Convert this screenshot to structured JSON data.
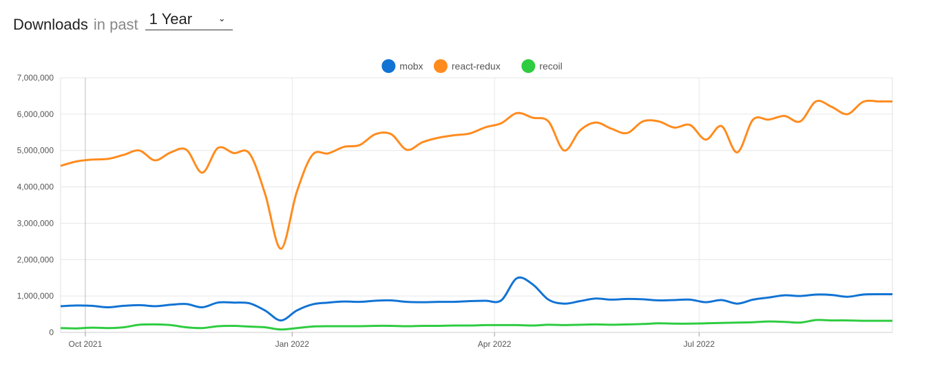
{
  "header": {
    "title": "Downloads",
    "subtitle": "in past",
    "range_select": {
      "value": "1 Year"
    }
  },
  "chart_data": {
    "type": "line",
    "title": "",
    "xlabel": "",
    "ylabel": "",
    "ylim": [
      0,
      7000000
    ],
    "xlim": [
      "2021-09-20",
      "2022-09-25"
    ],
    "y_ticks": [
      0,
      1000000,
      2000000,
      3000000,
      4000000,
      5000000,
      6000000,
      7000000
    ],
    "y_tick_labels": [
      "0",
      "1,000,000",
      "2,000,000",
      "3,000,000",
      "4,000,000",
      "5,000,000",
      "6,000,000",
      "7,000,000"
    ],
    "x_ticks": [
      "2021-10-01",
      "2022-01-01",
      "2022-04-01",
      "2022-07-01"
    ],
    "x_tick_labels": [
      "Oct 2021",
      "Jan 2022",
      "Apr 2022",
      "Jul 2022"
    ],
    "grid": true,
    "legend_position": "top-center",
    "x": [
      "2021-09-20",
      "2021-09-27",
      "2021-10-04",
      "2021-10-11",
      "2021-10-18",
      "2021-10-25",
      "2021-11-01",
      "2021-11-08",
      "2021-11-15",
      "2021-11-22",
      "2021-11-29",
      "2021-12-06",
      "2021-12-13",
      "2021-12-20",
      "2021-12-27",
      "2022-01-03",
      "2022-01-10",
      "2022-01-17",
      "2022-01-24",
      "2022-01-31",
      "2022-02-07",
      "2022-02-14",
      "2022-02-21",
      "2022-02-28",
      "2022-03-07",
      "2022-03-14",
      "2022-03-21",
      "2022-03-28",
      "2022-04-04",
      "2022-04-11",
      "2022-04-18",
      "2022-04-25",
      "2022-05-02",
      "2022-05-09",
      "2022-05-16",
      "2022-05-23",
      "2022-05-30",
      "2022-06-06",
      "2022-06-13",
      "2022-06-20",
      "2022-06-27",
      "2022-07-04",
      "2022-07-11",
      "2022-07-18",
      "2022-07-25",
      "2022-08-01",
      "2022-08-08",
      "2022-08-15",
      "2022-08-22",
      "2022-08-29",
      "2022-09-05",
      "2022-09-12",
      "2022-09-19",
      "2022-09-25"
    ],
    "series": [
      {
        "name": "mobx",
        "color": "#1173d4",
        "values": [
          720000,
          740000,
          730000,
          690000,
          730000,
          750000,
          720000,
          760000,
          780000,
          690000,
          820000,
          820000,
          800000,
          600000,
          330000,
          600000,
          770000,
          820000,
          850000,
          840000,
          870000,
          880000,
          840000,
          830000,
          840000,
          840000,
          860000,
          870000,
          880000,
          1490000,
          1320000,
          900000,
          790000,
          860000,
          930000,
          900000,
          920000,
          910000,
          880000,
          890000,
          900000,
          830000,
          890000,
          790000,
          900000,
          960000,
          1020000,
          1000000,
          1040000,
          1030000,
          980000,
          1040000,
          1050000,
          1050000
        ]
      },
      {
        "name": "react-redux",
        "color": "#ff8b1e",
        "values": [
          4580000,
          4700000,
          4750000,
          4770000,
          4880000,
          5000000,
          4730000,
          4950000,
          5020000,
          4390000,
          5070000,
          4930000,
          4920000,
          3800000,
          2300000,
          3850000,
          4880000,
          4920000,
          5100000,
          5150000,
          5450000,
          5450000,
          5020000,
          5230000,
          5350000,
          5420000,
          5470000,
          5640000,
          5750000,
          6030000,
          5900000,
          5800000,
          5000000,
          5550000,
          5770000,
          5600000,
          5480000,
          5800000,
          5800000,
          5630000,
          5700000,
          5300000,
          5670000,
          4950000,
          5850000,
          5850000,
          5950000,
          5800000,
          6350000,
          6200000,
          6000000,
          6340000,
          6350000,
          6350000
        ]
      },
      {
        "name": "recoil",
        "color": "#2ecc40",
        "values": [
          120000,
          110000,
          130000,
          120000,
          140000,
          210000,
          220000,
          200000,
          140000,
          120000,
          170000,
          180000,
          160000,
          140000,
          80000,
          120000,
          160000,
          170000,
          170000,
          170000,
          180000,
          180000,
          170000,
          180000,
          180000,
          190000,
          190000,
          200000,
          200000,
          200000,
          190000,
          210000,
          200000,
          210000,
          220000,
          210000,
          220000,
          230000,
          250000,
          240000,
          240000,
          250000,
          260000,
          270000,
          280000,
          300000,
          290000,
          270000,
          340000,
          330000,
          330000,
          320000,
          320000,
          320000
        ]
      }
    ]
  }
}
